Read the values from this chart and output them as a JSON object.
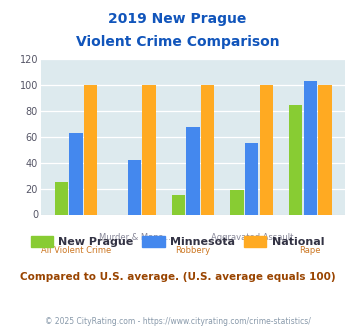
{
  "title_line1": "2019 New Prague",
  "title_line2": "Violent Crime Comparison",
  "categories": [
    "All Violent Crime",
    "Murder & Mans...",
    "Robbery",
    "Aggravated Assault",
    "Rape"
  ],
  "line1_labels": [
    "",
    "Murder & Mans...",
    "",
    "Aggravated Assault",
    ""
  ],
  "line2_labels": [
    "All Violent Crime",
    "",
    "Robbery",
    "",
    "Rape"
  ],
  "new_prague": [
    25,
    0,
    15,
    19,
    85
  ],
  "minnesota": [
    63,
    42,
    68,
    55,
    103
  ],
  "national": [
    100,
    100,
    100,
    100,
    100
  ],
  "colors": {
    "new_prague": "#88cc33",
    "minnesota": "#4488ee",
    "national": "#ffaa22"
  },
  "ylim": [
    0,
    120
  ],
  "yticks": [
    0,
    20,
    40,
    60,
    80,
    100,
    120
  ],
  "bg_color": "#ddeaee",
  "title_color": "#1155bb",
  "footer_note": "Compared to U.S. average. (U.S. average equals 100)",
  "footer_note_color": "#994400",
  "copyright": "© 2025 CityRating.com - https://www.cityrating.com/crime-statistics/",
  "copyright_color": "#8899aa",
  "line1_color": "#888899",
  "line2_color": "#cc7722"
}
